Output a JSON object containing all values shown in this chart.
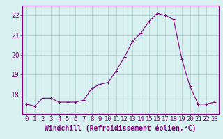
{
  "x": [
    0,
    1,
    2,
    3,
    4,
    5,
    6,
    7,
    8,
    9,
    10,
    11,
    12,
    13,
    14,
    15,
    16,
    17,
    18,
    19,
    20,
    21,
    22,
    23
  ],
  "y": [
    17.5,
    17.4,
    17.8,
    17.8,
    17.6,
    17.6,
    17.6,
    17.7,
    18.3,
    18.5,
    18.6,
    19.2,
    19.9,
    20.7,
    21.1,
    21.7,
    22.1,
    22.0,
    21.8,
    19.8,
    18.4,
    17.5,
    17.5,
    17.6
  ],
  "xlim": [
    -0.5,
    23.5
  ],
  "ylim": [
    17.0,
    22.5
  ],
  "yticks": [
    18,
    19,
    20,
    21,
    22
  ],
  "xticks": [
    0,
    1,
    2,
    3,
    4,
    5,
    6,
    7,
    8,
    9,
    10,
    11,
    12,
    13,
    14,
    15,
    16,
    17,
    18,
    19,
    20,
    21,
    22,
    23
  ],
  "xlabel": "Windchill (Refroidissement éolien,°C)",
  "line_color": "#800080",
  "marker": "+",
  "bg_color": "#d8f0f0",
  "grid_color": "#aacccc",
  "tick_color": "#800080",
  "label_color": "#800080",
  "tick_fontsize": 6.5,
  "label_fontsize": 7.0
}
